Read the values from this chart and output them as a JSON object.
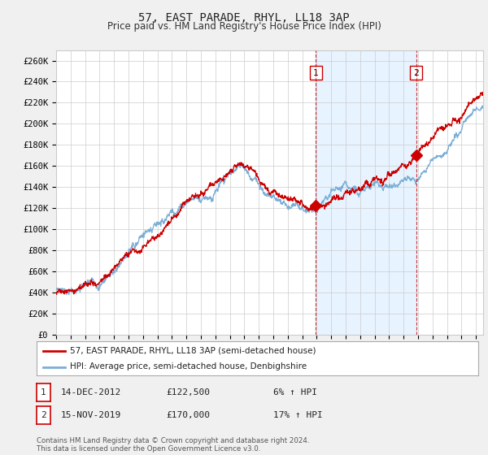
{
  "title": "57, EAST PARADE, RHYL, LL18 3AP",
  "subtitle": "Price paid vs. HM Land Registry's House Price Index (HPI)",
  "ylabel_ticks": [
    "£0",
    "£20K",
    "£40K",
    "£60K",
    "£80K",
    "£100K",
    "£120K",
    "£140K",
    "£160K",
    "£180K",
    "£200K",
    "£220K",
    "£240K",
    "£260K"
  ],
  "ytick_values": [
    0,
    20000,
    40000,
    60000,
    80000,
    100000,
    120000,
    140000,
    160000,
    180000,
    200000,
    220000,
    240000,
    260000
  ],
  "ylim": [
    0,
    270000
  ],
  "xlim_start": 1995.0,
  "xlim_end": 2024.5,
  "red_line_label": "57, EAST PARADE, RHYL, LL18 3AP (semi-detached house)",
  "blue_line_label": "HPI: Average price, semi-detached house, Denbighshire",
  "sale1_label": "1",
  "sale1_date": "14-DEC-2012",
  "sale1_price": "£122,500",
  "sale1_change": "6% ↑ HPI",
  "sale1_x": 2012.95,
  "sale1_y": 122500,
  "sale2_label": "2",
  "sale2_date": "15-NOV-2019",
  "sale2_price": "£170,000",
  "sale2_change": "17% ↑ HPI",
  "sale2_x": 2019.87,
  "sale2_y": 170000,
  "vline1_x": 2012.95,
  "vline2_x": 2019.87,
  "shade_start": 2012.95,
  "shade_end": 2019.87,
  "footer": "Contains HM Land Registry data © Crown copyright and database right 2024.\nThis data is licensed under the Open Government Licence v3.0.",
  "bg_color": "#f0f0f0",
  "plot_bg_color": "#ffffff",
  "shade_color": "#ddeeff",
  "red_color": "#cc0000",
  "blue_color": "#7aaed6",
  "grid_color": "#cccccc",
  "title_fontsize": 10,
  "subtitle_fontsize": 8.5,
  "tick_fontsize": 7.5,
  "legend_fontsize": 7.5,
  "annotation_fontsize": 8
}
